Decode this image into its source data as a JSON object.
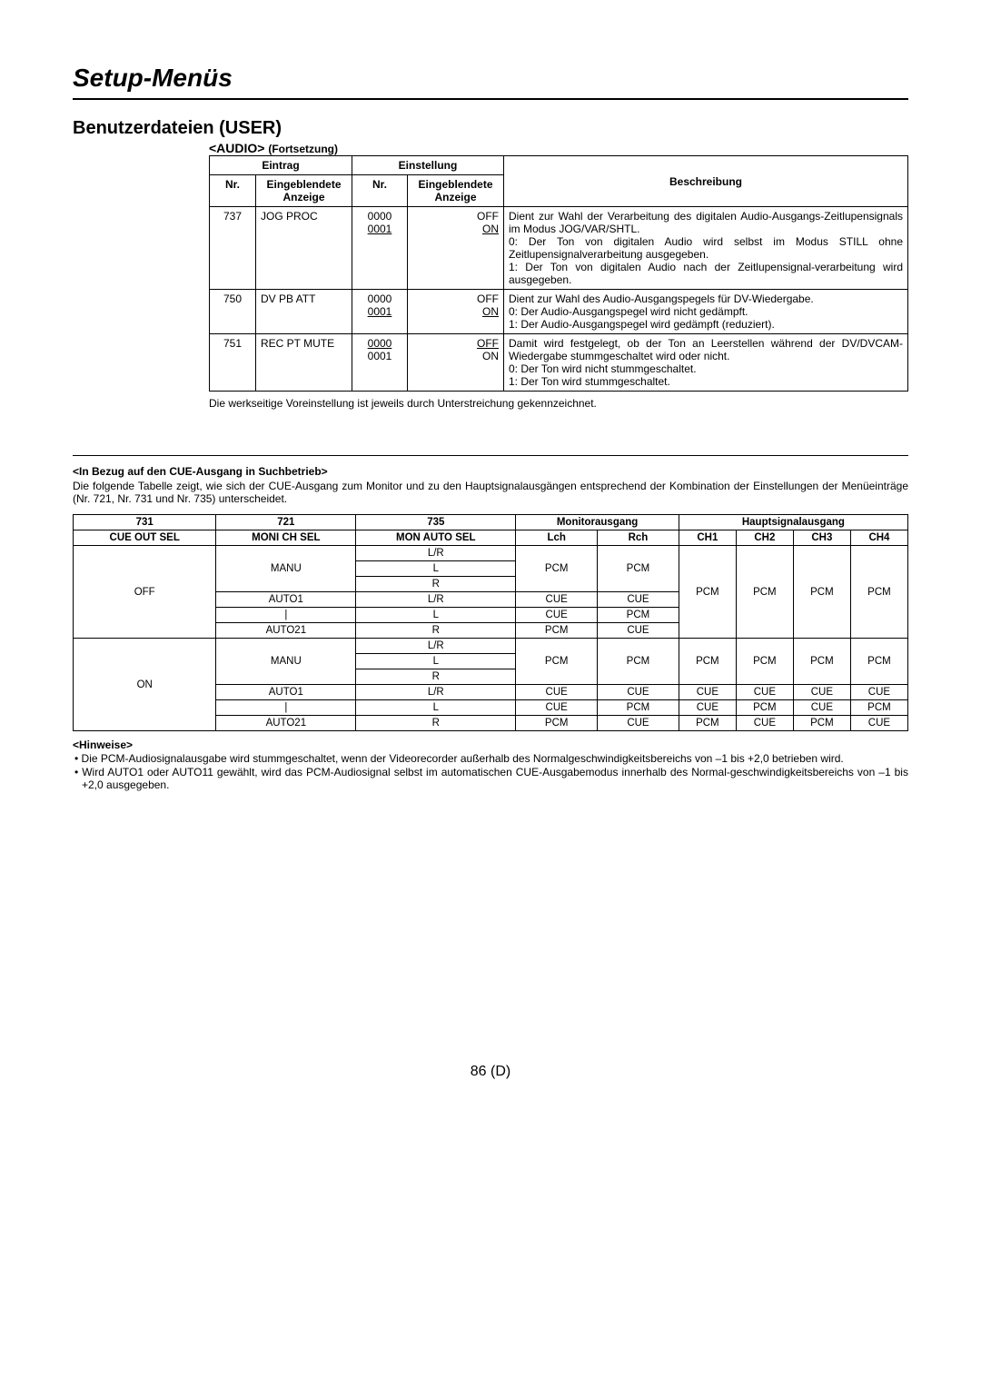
{
  "title": "Setup-Menüs",
  "subtitle": "Benutzerdateien (USER)",
  "section_tag": "<AUDIO>",
  "section_cont": "(Fortsetzung)",
  "t1": {
    "h_eintrag": "Eintrag",
    "h_einstellung": "Einstellung",
    "h_nr": "Nr.",
    "h_anzeige": "Eingeblendete Anzeige",
    "h_nr2": "Nr.",
    "h_anzeige2": "Eingeblendete Anzeige",
    "h_beschreibung": "Beschreibung",
    "rows": [
      {
        "nr": "737",
        "name": "JOG PROC",
        "codes_plain": "0000",
        "codes_u": "0001",
        "vals_plain": "OFF",
        "vals_u": "ON",
        "desc": "Dient zur Wahl der Verarbeitung des digitalen Audio-Ausgangs-Zeitlupensignals im Modus JOG/VAR/SHTL.\n0: Der Ton von digitalen Audio wird selbst im Modus STILL ohne Zeitlupensignalverarbeitung ausgegeben.\n1: Der Ton von digitalen Audio nach der Zeitlupensignal-verarbeitung wird ausgegeben."
      },
      {
        "nr": "750",
        "name": "DV PB ATT",
        "codes_plain": "0000",
        "codes_u": "0001",
        "vals_plain": "OFF",
        "vals_u": "ON",
        "desc": "Dient zur Wahl des Audio-Ausgangspegels für DV-Wiedergabe.\n0: Der Audio-Ausgangspegel wird nicht gedämpft.\n1: Der Audio-Ausgangspegel wird gedämpft (reduziert)."
      },
      {
        "nr": "751",
        "name": "REC PT MUTE",
        "codes_plain": "0001",
        "codes_u": "0000",
        "vals_plain": "ON",
        "vals_u": "OFF",
        "desc": "Damit wird festgelegt, ob der Ton an Leerstellen während der DV/DVCAM-Wiedergabe stummgeschaltet wird oder nicht.\n0: Der Ton wird nicht stummgeschaltet.\n1: Der Ton wird stummgeschaltet."
      }
    ]
  },
  "note_below": "Die werkseitige Voreinstellung ist jeweils durch Unterstreichung gekennzeichnet.",
  "mid_heading": "<In Bezug auf den CUE-Ausgang in Suchbetrieb>",
  "mid_para": "Die folgende Tabelle zeigt, wie sich der CUE-Ausgang zum Monitor und zu den Hauptsignalausgängen entsprechend der Kombination der Einstellungen der Menüeinträge (Nr. 721, Nr. 731 und Nr. 735) unterscheidet.",
  "t2": {
    "h": {
      "c731": "731",
      "c721": "721",
      "c735": "735",
      "monitor": "Monitorausgang",
      "haupt": "Hauptsignalausgang",
      "cue_out": "CUE OUT SEL",
      "moni_ch": "MONI CH SEL",
      "mon_auto": "MON AUTO SEL",
      "lch": "Lch",
      "rch": "Rch",
      "ch1": "CH1",
      "ch2": "CH2",
      "ch3": "CH3",
      "ch4": "CH4"
    },
    "off": "OFF",
    "on": "ON",
    "manu": "MANU",
    "auto1": "AUTO1",
    "auto21_a": "AUTO21",
    "auto21_b": "AUTO21",
    "lr": "L/R",
    "l": "L",
    "r": "R",
    "pcm": "PCM",
    "cue": "CUE"
  },
  "hinweise_label": "<Hinweise>",
  "hinweis1": "Die PCM-Audiosignalausgabe wird stummgeschaltet, wenn der Videorecorder außerhalb des Normalgeschwindigkeitsbereichs von –1 bis +2,0 betrieben wird.",
  "hinweis2": "Wird AUTO1 oder AUTO11 gewählt, wird das PCM-Audiosignal selbst im automatischen CUE-Ausgabemodus innerhalb des Normal-geschwindigkeitsbereichs von –1 bis +2,0 ausgegeben.",
  "page_num": "86 (D)"
}
